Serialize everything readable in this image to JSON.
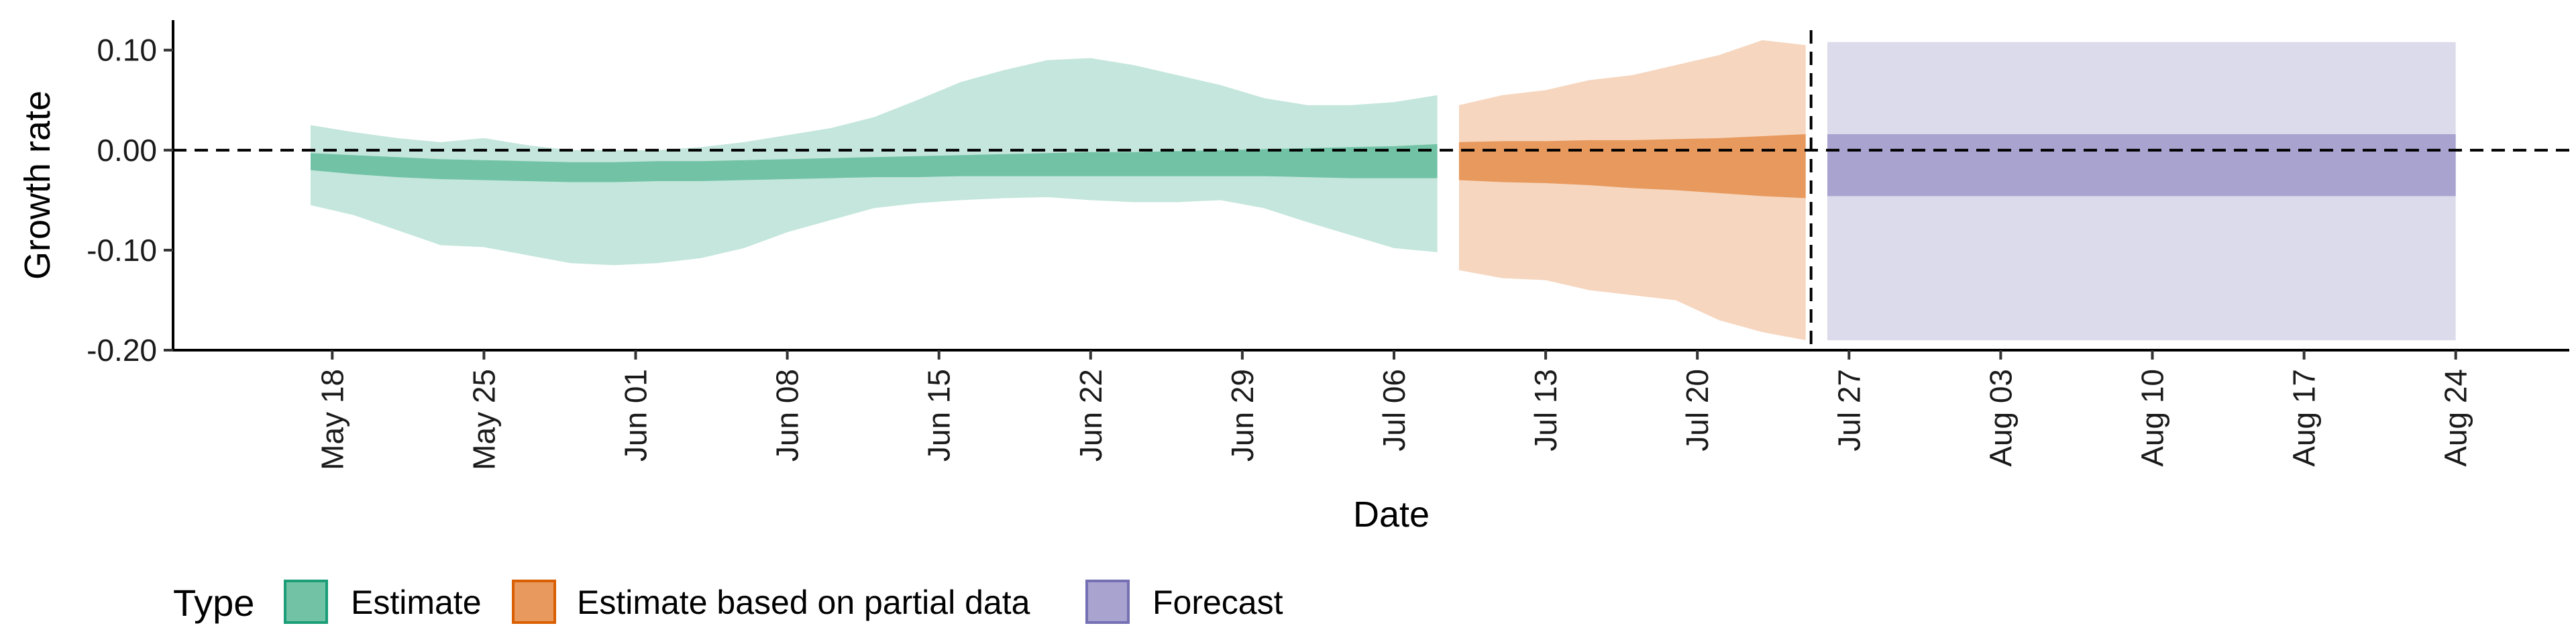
{
  "chart_data": {
    "type": "area",
    "xlabel": "Date",
    "ylabel": "Growth rate",
    "ylim": [
      -0.2,
      0.13
    ],
    "y_ticks": [
      "0.10",
      "0.00",
      "-0.10",
      "-0.20"
    ],
    "y_tick_values": [
      0.1,
      0.0,
      -0.1,
      -0.2
    ],
    "x_ticks": [
      "May 18",
      "May 25",
      "Jun 01",
      "Jun 08",
      "Jun 15",
      "Jun 22",
      "Jun 29",
      "Jul 06",
      "Jul 13",
      "Jul 20",
      "Jul 27",
      "Aug 03",
      "Aug 10",
      "Aug 17",
      "Aug 24"
    ],
    "reference_lines": {
      "horizontal_y": 0.0,
      "vertical_date": "Jul 25"
    },
    "legend": {
      "title": "Type",
      "placement": "bottom-left",
      "entries": [
        "Estimate",
        "Estimate based on partial data",
        "Forecast"
      ]
    },
    "colors": {
      "Estimate": {
        "outer": "#c4e6dc",
        "inner": "#72c3a6",
        "border": "#1b9e77"
      },
      "Estimate based on partial data": {
        "outer": "#f6d6bf",
        "inner": "#e89a5e",
        "border": "#d95f02"
      },
      "Forecast": {
        "outer": "#dcdbeb",
        "inner": "#a9a3d0",
        "border": "#7570b3"
      }
    },
    "series": [
      {
        "name": "Estimate",
        "x": [
          "May 17",
          "May 19",
          "May 21",
          "May 23",
          "May 25",
          "May 27",
          "May 29",
          "May 31",
          "Jun 02",
          "Jun 04",
          "Jun 06",
          "Jun 08",
          "Jun 10",
          "Jun 12",
          "Jun 14",
          "Jun 16",
          "Jun 18",
          "Jun 20",
          "Jun 22",
          "Jun 24",
          "Jun 26",
          "Jun 28",
          "Jun 30",
          "Jul 02",
          "Jul 04",
          "Jul 06",
          "Jul 08"
        ],
        "lower_90": [
          -0.055,
          -0.065,
          -0.08,
          -0.095,
          -0.097,
          -0.105,
          -0.113,
          -0.115,
          -0.113,
          -0.108,
          -0.098,
          -0.082,
          -0.07,
          -0.058,
          -0.053,
          -0.05,
          -0.048,
          -0.047,
          -0.05,
          -0.052,
          -0.052,
          -0.05,
          -0.058,
          -0.072,
          -0.085,
          -0.098,
          -0.102
        ],
        "upper_90": [
          0.025,
          0.018,
          0.012,
          0.008,
          0.012,
          0.005,
          0.0,
          0.0,
          0.0,
          0.003,
          0.008,
          0.015,
          0.022,
          0.033,
          0.05,
          0.068,
          0.08,
          0.09,
          0.092,
          0.085,
          0.075,
          0.065,
          0.052,
          0.045,
          0.045,
          0.048,
          0.055
        ],
        "lower_50": [
          -0.02,
          -0.024,
          -0.027,
          -0.029,
          -0.03,
          -0.031,
          -0.032,
          -0.032,
          -0.031,
          -0.031,
          -0.03,
          -0.029,
          -0.028,
          -0.027,
          -0.027,
          -0.026,
          -0.026,
          -0.026,
          -0.026,
          -0.026,
          -0.026,
          -0.026,
          -0.026,
          -0.027,
          -0.028,
          -0.028,
          -0.028
        ],
        "upper_50": [
          -0.003,
          -0.005,
          -0.007,
          -0.009,
          -0.01,
          -0.011,
          -0.012,
          -0.012,
          -0.011,
          -0.011,
          -0.01,
          -0.009,
          -0.008,
          -0.007,
          -0.006,
          -0.005,
          -0.004,
          -0.003,
          -0.002,
          -0.002,
          -0.001,
          0.0,
          0.001,
          0.002,
          0.003,
          0.004,
          0.006
        ]
      },
      {
        "name": "Estimate based on partial data",
        "x": [
          "Jul 09",
          "Jul 11",
          "Jul 13",
          "Jul 15",
          "Jul 17",
          "Jul 19",
          "Jul 21",
          "Jul 23",
          "Jul 25"
        ],
        "lower_90": [
          -0.12,
          -0.128,
          -0.13,
          -0.14,
          -0.145,
          -0.15,
          -0.17,
          -0.182,
          -0.19
        ],
        "upper_90": [
          0.045,
          0.055,
          0.06,
          0.07,
          0.075,
          0.085,
          0.095,
          0.11,
          0.105
        ],
        "lower_50": [
          -0.03,
          -0.032,
          -0.033,
          -0.035,
          -0.038,
          -0.04,
          -0.043,
          -0.046,
          -0.048
        ],
        "upper_50": [
          0.008,
          0.009,
          0.009,
          0.01,
          0.01,
          0.011,
          0.012,
          0.014,
          0.016
        ]
      },
      {
        "name": "Forecast",
        "x": [
          "Jul 26",
          "Aug 24"
        ],
        "lower_90": [
          -0.19,
          -0.19
        ],
        "upper_90": [
          0.108,
          0.108
        ],
        "lower_50": [
          -0.046,
          -0.046
        ],
        "upper_50": [
          0.016,
          0.016
        ]
      }
    ]
  }
}
